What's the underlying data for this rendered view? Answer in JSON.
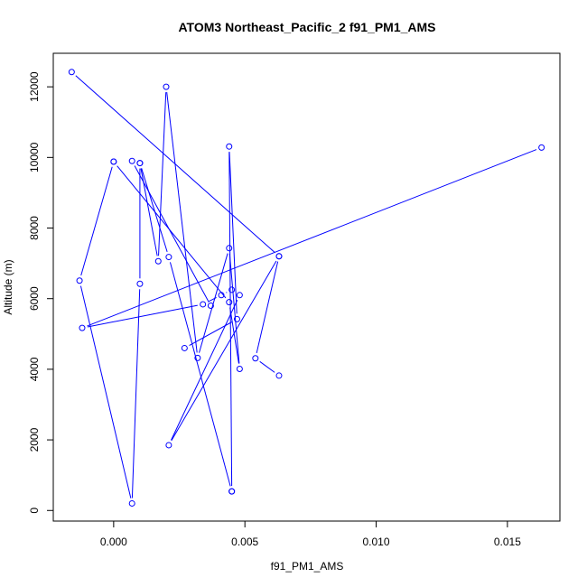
{
  "chart_data": {
    "type": "line",
    "title": "ATOM3 Northeast_Pacific_2 f91_PM1_AMS",
    "xlabel": "f91_PM1_AMS",
    "ylabel": "Altitude (m)",
    "xlim": [
      -0.0023,
      0.017
    ],
    "ylim": [
      -300,
      12950
    ],
    "xticks": [
      0.0,
      0.005,
      0.01,
      0.015
    ],
    "xtick_labels": [
      "0.000",
      "0.005",
      "0.010",
      "0.015"
    ],
    "yticks": [
      0,
      2000,
      4000,
      6000,
      8000,
      10000,
      12000
    ],
    "ytick_labels": [
      "0",
      "2000",
      "4000",
      "6000",
      "8000",
      "10000",
      "12000"
    ],
    "grid": false,
    "legend": "none",
    "color": "#0000ff",
    "series": [
      {
        "x": [
          0.0163,
          -0.0012,
          0.0034,
          0.0041,
          0.0045,
          0.0048,
          0.0021,
          0.0063,
          0.0054,
          0.0063
        ],
        "y": [
          10280,
          5170,
          5840,
          6100,
          6250,
          6100,
          1850,
          7200,
          4310,
          3820
        ]
      },
      {
        "x": [
          0.0037,
          0.0007,
          0.001,
          0.0021,
          0.0045
        ],
        "y": [
          5800,
          9900,
          9840,
          7180,
          540
        ]
      },
      {
        "x": [
          0.0045,
          0.0044,
          0.0047,
          0.0027
        ],
        "y": [
          540,
          10310,
          5420,
          4600
        ]
      },
      {
        "x": [
          -0.0016,
          0.0063
        ],
        "y": [
          12420,
          7200
        ]
      },
      {
        "x": [
          0.0,
          0.0044,
          0.0048,
          0.0044,
          0.0032,
          0.002,
          0.0017,
          0.001,
          0.001,
          0.0007,
          -0.0013,
          0.0
        ],
        "y": [
          9880,
          5900,
          4010,
          7430,
          4320,
          12000,
          7060,
          9840,
          6420,
          200,
          6510,
          9880
        ]
      }
    ]
  }
}
